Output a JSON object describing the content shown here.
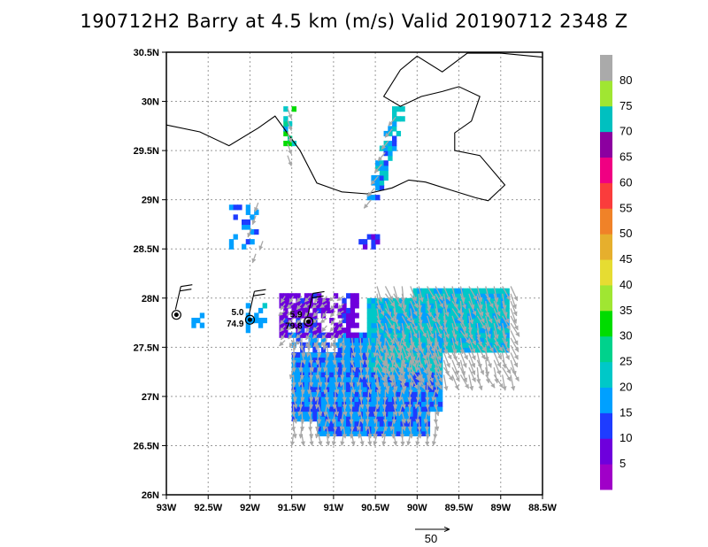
{
  "title": "190712H2 Barry at 4.5 km (m/s) Valid 20190712 2348 Z",
  "chart_data": {
    "type": "heatmap",
    "title": "190712H2 Barry at 4.5 km (m/s) Valid 20190712 2348 Z",
    "units": "m/s",
    "xlim": [
      -93.0,
      -88.5
    ],
    "ylim": [
      26.0,
      30.5
    ],
    "x_ticks": [
      -93.0,
      -92.5,
      -92.0,
      -91.5,
      -91.0,
      -90.5,
      -90.0,
      -89.5,
      -89.0,
      -88.5
    ],
    "x_tick_labels": [
      "93W",
      "92.5W",
      "92W",
      "91.5W",
      "91W",
      "90.5W",
      "90W",
      "89.5W",
      "89W",
      "88.5W"
    ],
    "y_ticks": [
      26.0,
      26.5,
      27.0,
      27.5,
      28.0,
      28.5,
      29.0,
      29.5,
      30.0,
      30.5
    ],
    "y_tick_labels": [
      "26N",
      "26.5N",
      "27N",
      "27.5N",
      "28N",
      "28.5N",
      "29N",
      "29.5N",
      "30N",
      "30.5N"
    ],
    "grid": true,
    "colorbar": {
      "placement": "right",
      "levels": [
        0,
        5,
        10,
        15,
        20,
        25,
        30,
        35,
        40,
        45,
        50,
        55,
        60,
        65,
        70,
        75,
        80,
        85
      ],
      "labels": [
        "5",
        "10",
        "15",
        "20",
        "25",
        "30",
        "35",
        "40",
        "45",
        "50",
        "55",
        "60",
        "65",
        "70",
        "75",
        "80"
      ],
      "colors": [
        "#a000c8",
        "#6e00dc",
        "#1e3cff",
        "#00a0ff",
        "#00c8c8",
        "#00d28c",
        "#00dc00",
        "#a0e632",
        "#e6dc32",
        "#e6af2d",
        "#f08228",
        "#fa3c3c",
        "#f00082",
        "#8c00a0",
        "#00c0c0",
        "#a0e632",
        "#aaaaaa"
      ]
    },
    "coastline": [
      [
        [
          -93.0,
          29.76
        ],
        [
          -92.6,
          29.69
        ],
        [
          -92.25,
          29.55
        ],
        [
          -91.9,
          29.73
        ],
        [
          -91.7,
          29.85
        ],
        [
          -91.4,
          29.5
        ],
        [
          -91.2,
          29.17
        ],
        [
          -90.9,
          29.08
        ],
        [
          -90.6,
          29.06
        ],
        [
          -90.3,
          29.12
        ],
        [
          -90.1,
          29.2
        ],
        [
          -89.9,
          29.18
        ],
        [
          -89.6,
          29.1
        ],
        [
          -89.3,
          29.02
        ],
        [
          -89.15,
          28.99
        ],
        [
          -88.95,
          29.15
        ],
        [
          -89.25,
          29.45
        ],
        [
          -89.55,
          29.5
        ],
        [
          -89.55,
          29.68
        ],
        [
          -89.35,
          29.8
        ],
        [
          -89.25,
          30.05
        ],
        [
          -89.5,
          30.15
        ],
        [
          -89.7,
          30.1
        ],
        [
          -89.95,
          30.05
        ],
        [
          -90.2,
          29.95
        ],
        [
          -90.4,
          30.05
        ],
        [
          -90.2,
          30.32
        ],
        [
          -90.0,
          30.46
        ],
        [
          -89.7,
          30.3
        ],
        [
          -89.4,
          30.49
        ],
        [
          -89.0,
          30.49
        ],
        [
          -88.5,
          30.45
        ]
      ]
    ],
    "wind_field": [
      {
        "lon_range": [
          -91.5,
          -89.8
        ],
        "lat_range": [
          26.6,
          27.6
        ],
        "speed": 15,
        "direction_deg": 270
      },
      {
        "lon_range": [
          -90.5,
          -88.9
        ],
        "lat_range": [
          27.2,
          28.1
        ],
        "speed": 20,
        "direction_deg": 290
      },
      {
        "lon_range": [
          -91.6,
          -90.9
        ],
        "lat_range": [
          27.55,
          28.0
        ],
        "speed": 10,
        "direction_deg": 225
      }
    ],
    "stations": [
      {
        "lon": -92.88,
        "lat": 27.83,
        "speed_label": "",
        "direction_label": ""
      },
      {
        "lon": -92.0,
        "lat": 27.78,
        "speed_label": "5.0",
        "direction_label": "74.9"
      },
      {
        "lon": -91.3,
        "lat": 27.76,
        "speed_label": "5.9",
        "direction_label": "79.8"
      }
    ],
    "reference_vector": {
      "value": 50,
      "label": "50"
    }
  }
}
